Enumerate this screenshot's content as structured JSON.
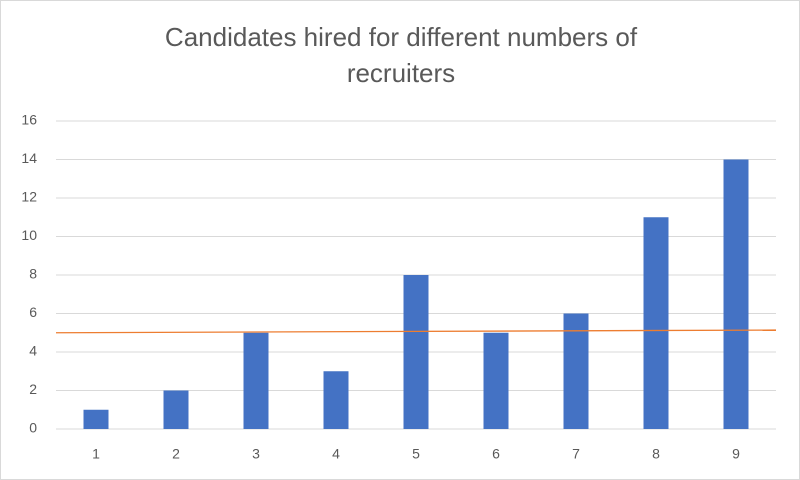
{
  "chart_data": {
    "type": "bar",
    "title": "Candidates hired for different numbers of recruiters",
    "categories": [
      "1",
      "2",
      "3",
      "4",
      "5",
      "6",
      "7",
      "8",
      "9"
    ],
    "values": [
      1,
      2,
      5,
      3,
      8,
      5,
      6,
      11,
      14
    ],
    "color": "#4472c4",
    "ylim": [
      0,
      16
    ],
    "yticks": [
      0,
      2,
      4,
      6,
      8,
      10,
      12,
      14,
      16
    ],
    "grid": true,
    "trendline": {
      "color": "#ed7d31",
      "values": [
        5.0,
        5.14
      ]
    }
  }
}
